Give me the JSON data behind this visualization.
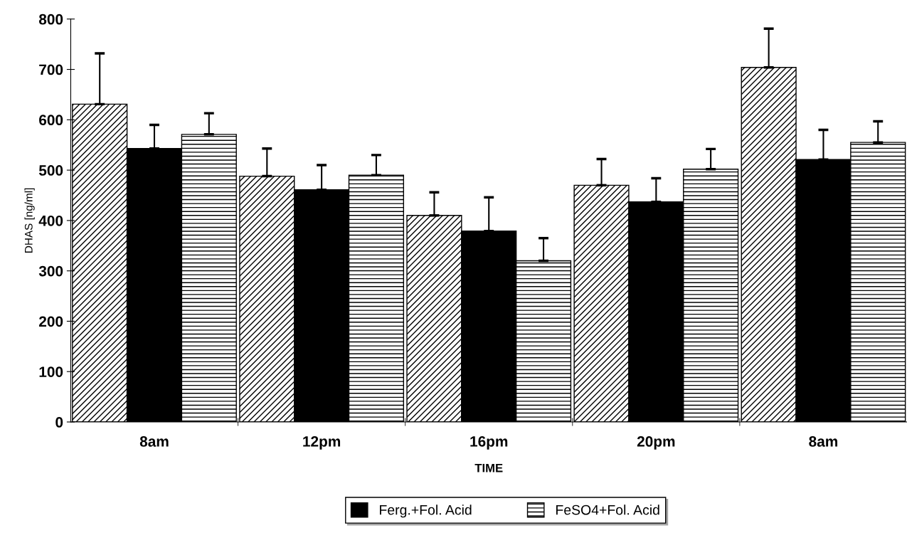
{
  "chart_data": {
    "type": "bar",
    "xlabel": "TIME",
    "ylabel": "DHAS [ng/ml]",
    "categories": [
      "8am",
      "12pm",
      "16pm",
      "20pm",
      "8am"
    ],
    "series": [
      {
        "color": "#000000",
        "values": [
          631,
          488,
          410,
          470,
          704
        ],
        "errors": [
          [
            631,
            732
          ],
          [
            488,
            543
          ],
          [
            410,
            456
          ],
          [
            470,
            522
          ],
          [
            704,
            781
          ]
        ]
      },
      {
        "name": "Ferg.+Fol. Acid",
        "color": "#000000",
        "values": [
          543,
          461,
          379,
          437,
          521
        ],
        "errors": [
          [
            543,
            590
          ],
          [
            461,
            510
          ],
          [
            379,
            446
          ],
          [
            437,
            484
          ],
          [
            521,
            580
          ]
        ]
      },
      {
        "name": "FeSO4+Fol. Acid",
        "color": "#000000",
        "values": [
          571,
          490,
          320,
          502,
          555
        ],
        "errors": [
          [
            571,
            613
          ],
          [
            490,
            530
          ],
          [
            320,
            365
          ],
          [
            502,
            542
          ],
          [
            555,
            597
          ]
        ]
      }
    ],
    "ylim": [
      0,
      800
    ],
    "yticks": [
      0,
      100,
      200,
      300,
      400,
      500,
      600,
      700,
      800
    ],
    "grid": false,
    "legend": "bottom"
  }
}
